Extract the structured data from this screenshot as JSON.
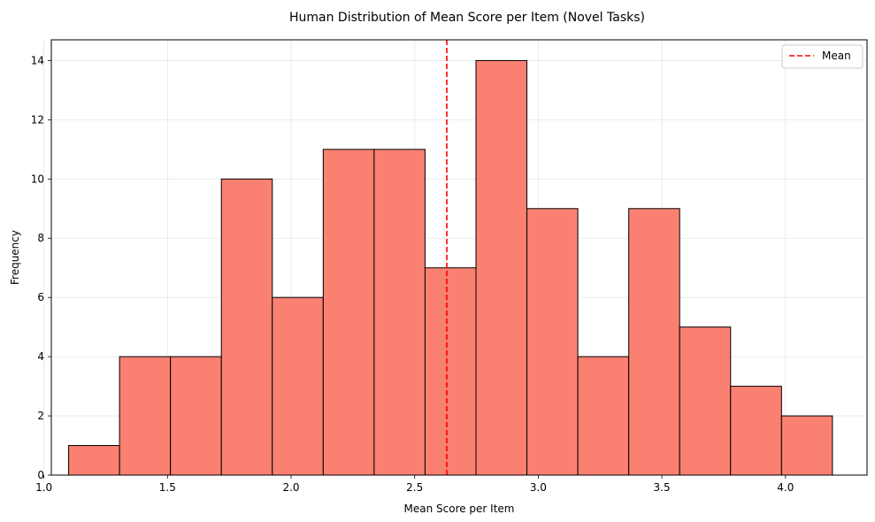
{
  "chart_data": {
    "type": "bar",
    "subtype": "histogram",
    "title": "Human Distribution of Mean Score per Item (Novel Tasks)",
    "xlabel": "Mean Score per Item",
    "ylabel": "Frequency",
    "xlim": [
      1.03,
      4.33
    ],
    "ylim": [
      0,
      14.7
    ],
    "xticks": [
      1.0,
      1.5,
      2.0,
      2.5,
      3.0,
      3.5,
      4.0
    ],
    "xtick_labels": [
      "1.0",
      "1.5",
      "2.0",
      "2.5",
      "3.0",
      "3.5",
      "4.0"
    ],
    "yticks": [
      0,
      2,
      4,
      6,
      8,
      10,
      12,
      14
    ],
    "ytick_labels": [
      "0",
      "2",
      "4",
      "6",
      "8",
      "10",
      "12",
      "14"
    ],
    "bin_edges": [
      1.1,
      1.306,
      1.512,
      1.718,
      1.924,
      2.13,
      2.336,
      2.542,
      2.748,
      2.954,
      3.16,
      3.366,
      3.572,
      3.778,
      3.984,
      4.19
    ],
    "counts": [
      1,
      4,
      4,
      10,
      6,
      11,
      11,
      7,
      14,
      9,
      4,
      9,
      5,
      3,
      2
    ],
    "bar_color": "#fa8072",
    "edge_color": "#000000",
    "grid": true,
    "mean_line": {
      "value": 2.63,
      "color": "#ff0000",
      "style": "dashed",
      "label": "Mean"
    },
    "legend": {
      "position": "top-right",
      "entries": [
        "Mean"
      ]
    }
  }
}
